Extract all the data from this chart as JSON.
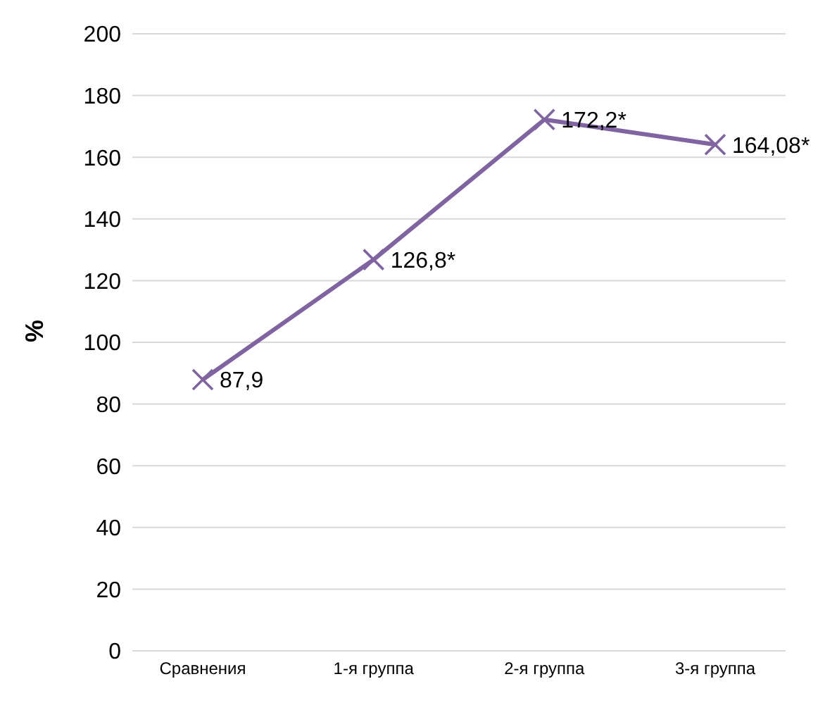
{
  "chart_data": {
    "type": "line",
    "ylabel": "%",
    "categories": [
      "Сравнения",
      "1-я группа",
      "2-я группа",
      "3-я группа"
    ],
    "series": [
      {
        "color": "#8064a2",
        "values": [
          87.9,
          126.8,
          172.2,
          164.08
        ],
        "value_labels": [
          "87,9",
          "126,8*",
          "172,2*",
          "164,08*"
        ]
      }
    ],
    "ylim": [
      0,
      200
    ],
    "yticks": [
      0,
      20,
      40,
      60,
      80,
      100,
      120,
      140,
      160,
      180,
      200
    ],
    "grid": "y",
    "marker": "cross",
    "legend": false
  }
}
